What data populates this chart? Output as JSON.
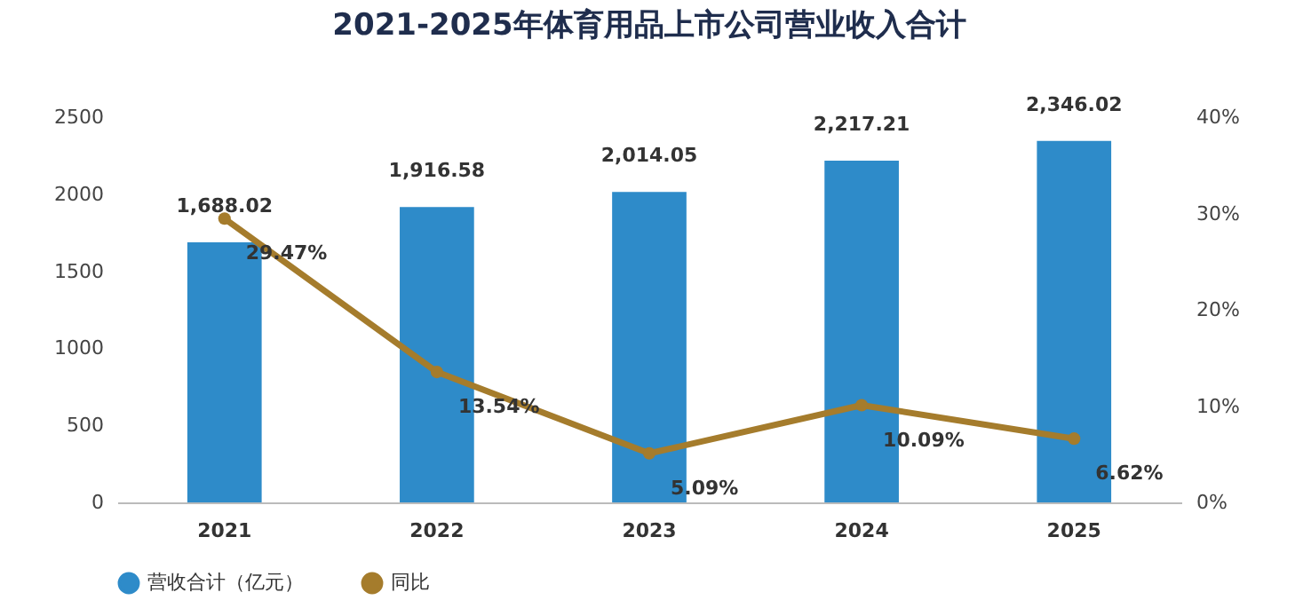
{
  "chart_data": {
    "type": "bar",
    "title": "2021-2025年体育用品上市公司营业收入合计",
    "categories": [
      "2021",
      "2022",
      "2023",
      "2024",
      "2025"
    ],
    "series": [
      {
        "name": "营收合计（亿元）",
        "color": "#2e8bc9",
        "values": [
          1688.02,
          1916.58,
          2014.05,
          2217.21,
          2346.02
        ],
        "value_labels": [
          "1,688.02",
          "1,916.58",
          "2,014.05",
          "2,217.21",
          "2,346.02"
        ]
      },
      {
        "name": "同比",
        "type": "line",
        "axis": "y2",
        "color": "#a57c2c",
        "values": [
          29.47,
          13.54,
          5.09,
          10.09,
          6.62
        ],
        "value_labels": [
          "29.47%",
          "13.54%",
          "5.09%",
          "10.09%",
          "6.62%"
        ]
      }
    ],
    "ylim": [
      0,
      2500
    ],
    "yticks": [
      0,
      500,
      1000,
      1500,
      2000,
      2500
    ],
    "y2lim": [
      0,
      40
    ],
    "y2ticks": [
      {
        "value": 0,
        "label": "0%"
      },
      {
        "value": 10,
        "label": "10%"
      },
      {
        "value": 20,
        "label": "20%"
      },
      {
        "value": 30,
        "label": "30%"
      },
      {
        "value": 40,
        "label": "40%"
      }
    ],
    "marker": "circle",
    "line_style": "solid",
    "grid": false,
    "legend": "bottom"
  }
}
